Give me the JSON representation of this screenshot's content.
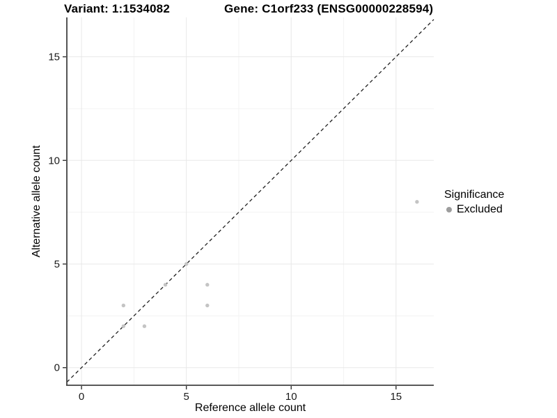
{
  "figure": {
    "title_left": "Variant: 1:1534082",
    "title_right": "Gene: C1orf233 (ENSG00000228594)"
  },
  "chart_data": {
    "type": "scatter",
    "xlabel": "Reference allele count",
    "ylabel": "Alternative allele count",
    "xlim": [
      -0.7,
      16.8
    ],
    "ylim": [
      -0.85,
      16.9
    ],
    "xticks": [
      0,
      5,
      10,
      15
    ],
    "yticks": [
      0,
      5,
      10,
      15
    ],
    "minor_xticks": [
      2.5,
      7.5,
      12.5
    ],
    "minor_yticks": [
      2.5,
      7.5,
      12.5
    ],
    "grid": "on",
    "identity_line": {
      "show": true,
      "equation": "y = x",
      "style": "dashed",
      "color": "#1f1f1f"
    },
    "series": [
      {
        "name": "Excluded",
        "color": "#c4c4c4",
        "points": [
          [
            2,
            2
          ],
          [
            2,
            3
          ],
          [
            3,
            2
          ],
          [
            4,
            4
          ],
          [
            5,
            5
          ],
          [
            6,
            3
          ],
          [
            6,
            4
          ],
          [
            16,
            8
          ]
        ]
      }
    ],
    "legend": {
      "title": "Significance",
      "position": "right",
      "items": [
        {
          "label": "Excluded",
          "marker": "circle-icon",
          "color": "#9d9d9d"
        }
      ]
    }
  }
}
